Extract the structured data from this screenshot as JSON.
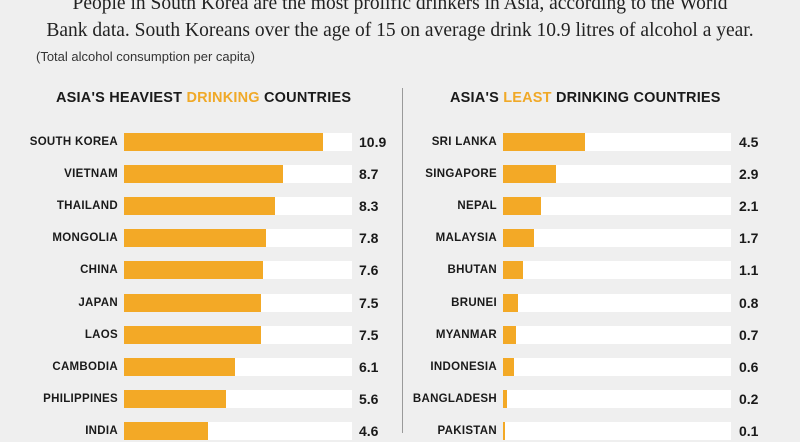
{
  "intro": {
    "line1": "People in South Korea are the most prolific drinkers in Asia, according to the World",
    "line2": "Bank data. South Koreans over the age of 15 on average drink 10.9 litres of alcohol a year."
  },
  "subnote": "(Total alcohol consumption per capita)",
  "colors": {
    "bar": "#f3a926",
    "track": "#ffffff",
    "highlight": "#f0a928",
    "background": "#efefef"
  },
  "chart_data": [
    {
      "type": "bar",
      "orientation": "horizontal",
      "title_parts": [
        "ASIA'S HEAVIEST ",
        "DRINKING",
        " COUNTRIES"
      ],
      "categories": [
        "SOUTH KOREA",
        "VIETNAM",
        "THAILAND",
        "MONGOLIA",
        "CHINA",
        "JAPAN",
        "LAOS",
        "CAMBODIA",
        "PHILIPPINES",
        "INDIA"
      ],
      "values": [
        10.9,
        8.7,
        8.3,
        7.8,
        7.6,
        7.5,
        7.5,
        6.1,
        5.6,
        4.6
      ],
      "value_labels": [
        "10.9",
        "8.7",
        "8.3",
        "7.8",
        "7.6",
        "7.5",
        "7.5",
        "6.1",
        "5.6",
        "4.6"
      ],
      "xlim": [
        0,
        12.5
      ]
    },
    {
      "type": "bar",
      "orientation": "horizontal",
      "title_parts": [
        "ASIA'S ",
        "LEAST",
        " DRINKING COUNTRIES"
      ],
      "categories": [
        "SRI LANKA",
        "SINGAPORE",
        "NEPAL",
        "MALAYSIA",
        "BHUTAN",
        "BRUNEI",
        "MYANMAR",
        "INDONESIA",
        "BANGLADESH",
        "PAKISTAN"
      ],
      "values": [
        4.5,
        2.9,
        2.1,
        1.7,
        1.1,
        0.8,
        0.7,
        0.6,
        0.2,
        0.1
      ],
      "value_labels": [
        "4.5",
        "2.9",
        "2.1",
        "1.7",
        "1.1",
        "0.8",
        "0.7",
        "0.6",
        "0.2",
        "0.1"
      ],
      "xlim": [
        0,
        12.5
      ]
    }
  ]
}
